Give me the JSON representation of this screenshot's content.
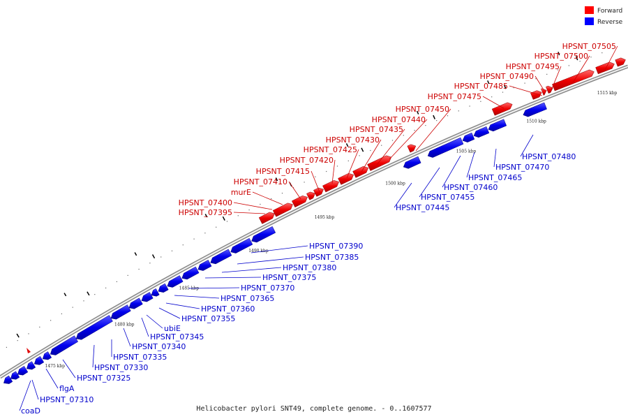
{
  "caption": "Helicobacter pylori SNT49, complete genome. - 0..1607577",
  "legend": [
    {
      "label": "Forward",
      "color": "#ff0000"
    },
    {
      "label": "Reverse",
      "color": "#0000ff"
    }
  ],
  "ticks": [
    "1475 kbp",
    "1480 kbp",
    "1485 kbp",
    "1490 kbp",
    "1495 kbp",
    "1500 kbp",
    "1505 kbp",
    "1510 kbp",
    "1515 kbp"
  ],
  "forward_genes": [
    "HPSNT_07395",
    "HPSNT_07400",
    "murE",
    "HPSNT_07410",
    "HPSNT_07415",
    "HPSNT_07420",
    "HPSNT_07425",
    "HPSNT_07430",
    "HPSNT_07435",
    "HPSNT_07440",
    "HPSNT_07450",
    "HPSNT_07475",
    "HPSNT_07485",
    "HPSNT_07490",
    "HPSNT_07495",
    "HPSNT_07500",
    "HPSNT_07505"
  ],
  "reverse_genes": [
    "coaD",
    "HPSNT_07310",
    "flgA",
    "HPSNT_07325",
    "HPSNT_07330",
    "HPSNT_07335",
    "HPSNT_07340",
    "HPSNT_07345",
    "ubiE",
    "HPSNT_07355",
    "HPSNT_07360",
    "HPSNT_07365",
    "HPSNT_07370",
    "HPSNT_07375",
    "HPSNT_07380",
    "HPSNT_07385",
    "HPSNT_07390",
    "HPSNT_07445",
    "HPSNT_07455",
    "HPSNT_07460",
    "HPSNT_07465",
    "HPSNT_07470",
    "HPSNT_07480"
  ]
}
